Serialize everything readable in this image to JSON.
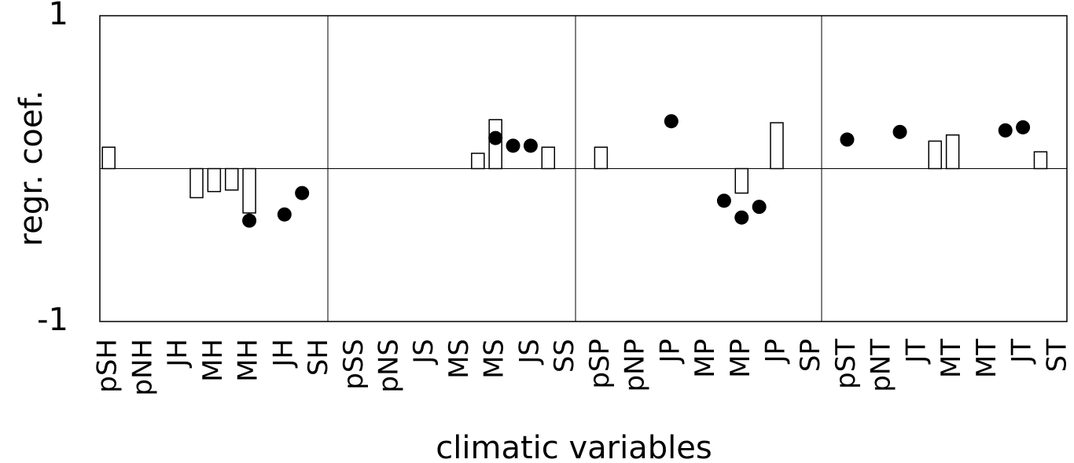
{
  "chart_data": {
    "type": "bar_dot",
    "xlabel": "climatic variables",
    "ylabel": "regr. coef.",
    "categories": [
      "pSH",
      null,
      "pNH",
      null,
      "JH",
      null,
      "MH",
      null,
      "MH",
      null,
      "JH",
      null,
      "SH",
      null,
      "pSS",
      null,
      "pNS",
      null,
      "JS",
      null,
      "MS",
      null,
      "MS",
      null,
      "JS",
      null,
      "SS",
      null,
      "pSP",
      null,
      "pNP",
      null,
      "JP",
      null,
      "MP",
      null,
      "MP",
      null,
      "JP",
      null,
      "SP",
      null,
      "pST",
      null,
      "pNT",
      null,
      "JT",
      null,
      "MT",
      null,
      "MT",
      null,
      "JT",
      null,
      "ST"
    ],
    "series": [
      {
        "kind": "bar",
        "color": "#ffffff",
        "values": [
          0.14,
          null,
          null,
          null,
          null,
          -0.19,
          -0.15,
          -0.14,
          -0.29,
          null,
          null,
          null,
          null,
          null,
          null,
          null,
          null,
          null,
          null,
          null,
          null,
          0.1,
          0.32,
          null,
          null,
          0.14,
          null,
          null,
          0.14,
          null,
          null,
          null,
          null,
          null,
          null,
          null,
          -0.16,
          null,
          0.3,
          null,
          null,
          null,
          null,
          null,
          null,
          null,
          null,
          0.18,
          0.22,
          null,
          null,
          null,
          null,
          0.11,
          null
        ]
      },
      {
        "kind": "dot",
        "color": "#000000",
        "values": [
          null,
          null,
          null,
          null,
          null,
          null,
          null,
          null,
          -0.34,
          null,
          -0.3,
          -0.16,
          null,
          null,
          null,
          null,
          null,
          null,
          null,
          null,
          null,
          null,
          0.2,
          0.15,
          0.15,
          null,
          null,
          null,
          null,
          null,
          null,
          null,
          0.31,
          null,
          null,
          -0.21,
          -0.32,
          -0.25,
          null,
          null,
          null,
          null,
          0.19,
          null,
          null,
          0.24,
          null,
          null,
          null,
          null,
          null,
          0.25,
          0.27,
          null,
          null
        ]
      }
    ],
    "ylim": [
      -1,
      1
    ],
    "yticks": [
      -1,
      1
    ]
  }
}
